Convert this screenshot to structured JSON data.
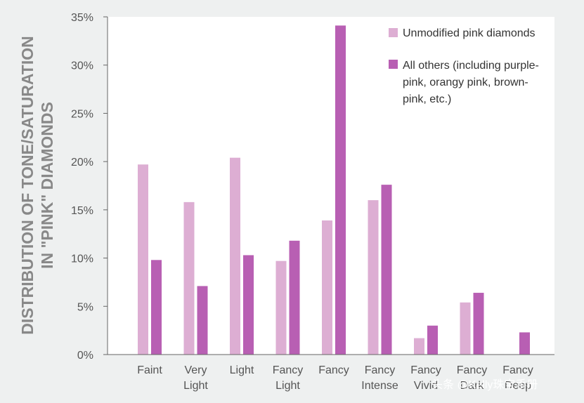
{
  "chart_data": {
    "type": "bar",
    "ylabel_lines": [
      "DISTRIBUTION OF TONE/SATURATION",
      "IN \"PINK\" DIAMONDS"
    ],
    "categories": [
      [
        "Faint"
      ],
      [
        "Very",
        "Light"
      ],
      [
        "Light"
      ],
      [
        "Fancy",
        "Light"
      ],
      [
        "Fancy"
      ],
      [
        "Fancy",
        "Intense"
      ],
      [
        "Fancy",
        "Vivid"
      ],
      [
        "Fancy",
        "Dark"
      ],
      [
        "Fancy",
        "Deep"
      ]
    ],
    "series": [
      {
        "name": "Unmodified pink diamonds",
        "color": "#ddaed3",
        "values": [
          19.7,
          15.8,
          20.4,
          9.7,
          13.9,
          16.0,
          1.7,
          5.4,
          0
        ]
      },
      {
        "name_lines": [
          "All others (including purple-",
          "pink, orangy pink, brown-",
          "pink, etc.)"
        ],
        "color": "#b85fb3",
        "values": [
          9.8,
          7.1,
          10.3,
          11.8,
          34.1,
          17.6,
          3.0,
          6.4,
          2.3
        ]
      }
    ],
    "yticks": [
      "0%",
      "5%",
      "10%",
      "15%",
      "20%",
      "25%",
      "30%",
      "35%"
    ],
    "ylim": [
      0,
      35
    ],
    "grid": false,
    "legend_position": "top-right"
  },
  "watermark": "头条 @Kelly珠宝手册"
}
